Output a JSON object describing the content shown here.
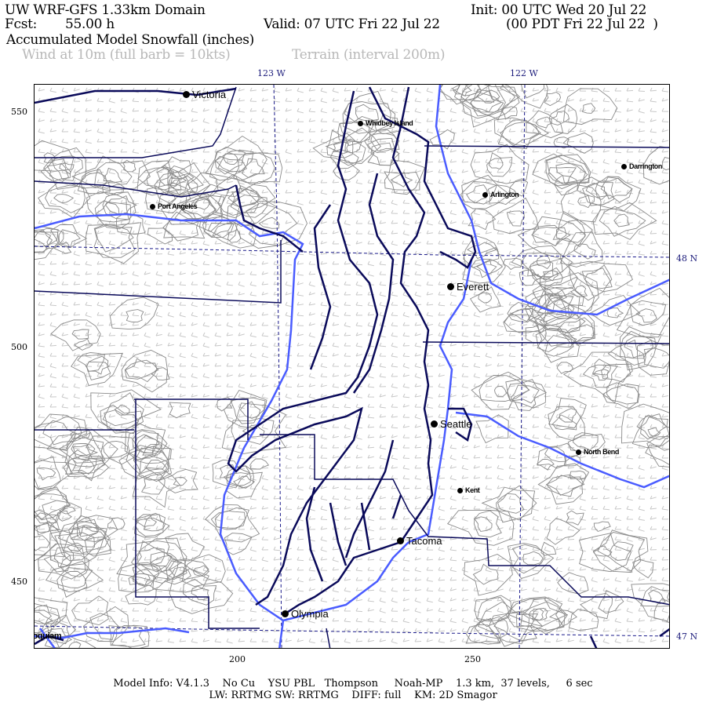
{
  "header": {
    "domain_title": "UW WRF-GFS 1.33km Domain",
    "init": "Init: 00 UTC Wed 20 Jul 22",
    "fcst_label": "Fcst:",
    "fcst_value": "55.00 h",
    "valid": "Valid: 07 UTC Fri 22 Jul 22",
    "valid_local": "(00 PDT Fri 22 Jul 22  )",
    "field_title": "Accumulated Model Snowfall (inches)",
    "wind_legend": "Wind at 10m (full barb = 10kts)",
    "terrain_legend": "Terrain (interval 200m)"
  },
  "axes": {
    "lon_labels": [
      "123 W",
      "122 W"
    ],
    "lat_labels": [
      "48 N",
      "47 N"
    ],
    "y_ticks": [
      "550",
      "500",
      "450"
    ],
    "x_ticks": [
      "200",
      "250"
    ]
  },
  "cities": [
    {
      "name": "Victoria"
    },
    {
      "name": "Whidbey Island"
    },
    {
      "name": "Darrington"
    },
    {
      "name": "Arlington"
    },
    {
      "name": "Port Angeles"
    },
    {
      "name": "Everett"
    },
    {
      "name": "Seattle"
    },
    {
      "name": "North Bend"
    },
    {
      "name": "Kent"
    },
    {
      "name": "Tacoma"
    },
    {
      "name": "Olympia"
    },
    {
      "name": "Hoquiam"
    }
  ],
  "colors": {
    "coastline": "#0a0a5a",
    "rivers": "#4a5cff",
    "terrain": "#8a8a8a",
    "wind_barbs": "#c8c8c8",
    "graticule": "#1a1a8a"
  },
  "footer": {
    "line1": "Model Info: V4.1.3    No Cu    YSU PBL   Thompson     Noah-MP    1.3 km,  37 levels,     6 sec",
    "line2": "LW: RRTMG SW: RRTMG    DIFF: full    KM: 2D Smagor"
  }
}
